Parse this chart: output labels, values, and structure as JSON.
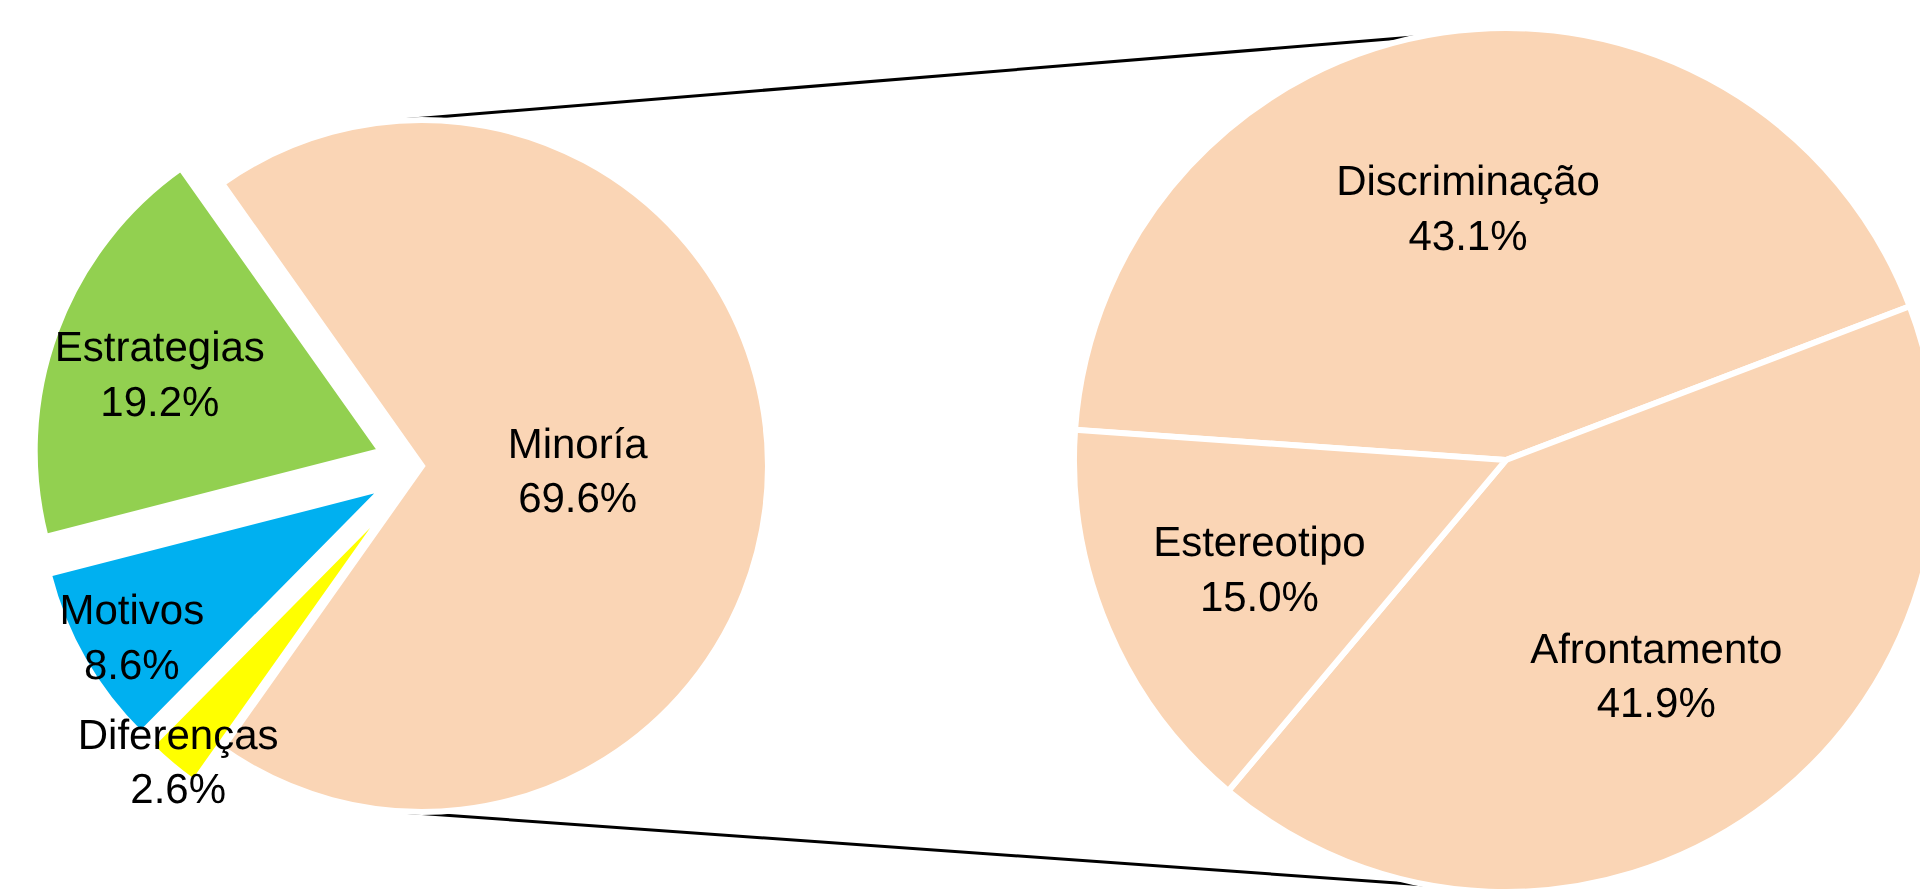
{
  "chart_data": [
    {
      "type": "pie",
      "categories": [
        "Minoría",
        "Diferenças",
        "Motivos",
        "Estrategias"
      ],
      "values": [
        69.6,
        2.6,
        8.6,
        19.2
      ],
      "colors": [
        "#fad5b5",
        "#ffff00",
        "#00b0f0",
        "#92d050"
      ],
      "value_labels": [
        "69.6%",
        "2.6%",
        "8.6%",
        "19.2%"
      ]
    },
    {
      "type": "pie",
      "categories": [
        "Discriminação",
        "Afrontamento",
        "Estereotipo"
      ],
      "values": [
        43.1,
        41.9,
        15.0
      ],
      "colors": [
        "#fad5b5",
        "#fad5b5",
        "#fad5b5"
      ],
      "value_labels": [
        "43.1%",
        "41.9%",
        "15.0%"
      ]
    }
  ]
}
